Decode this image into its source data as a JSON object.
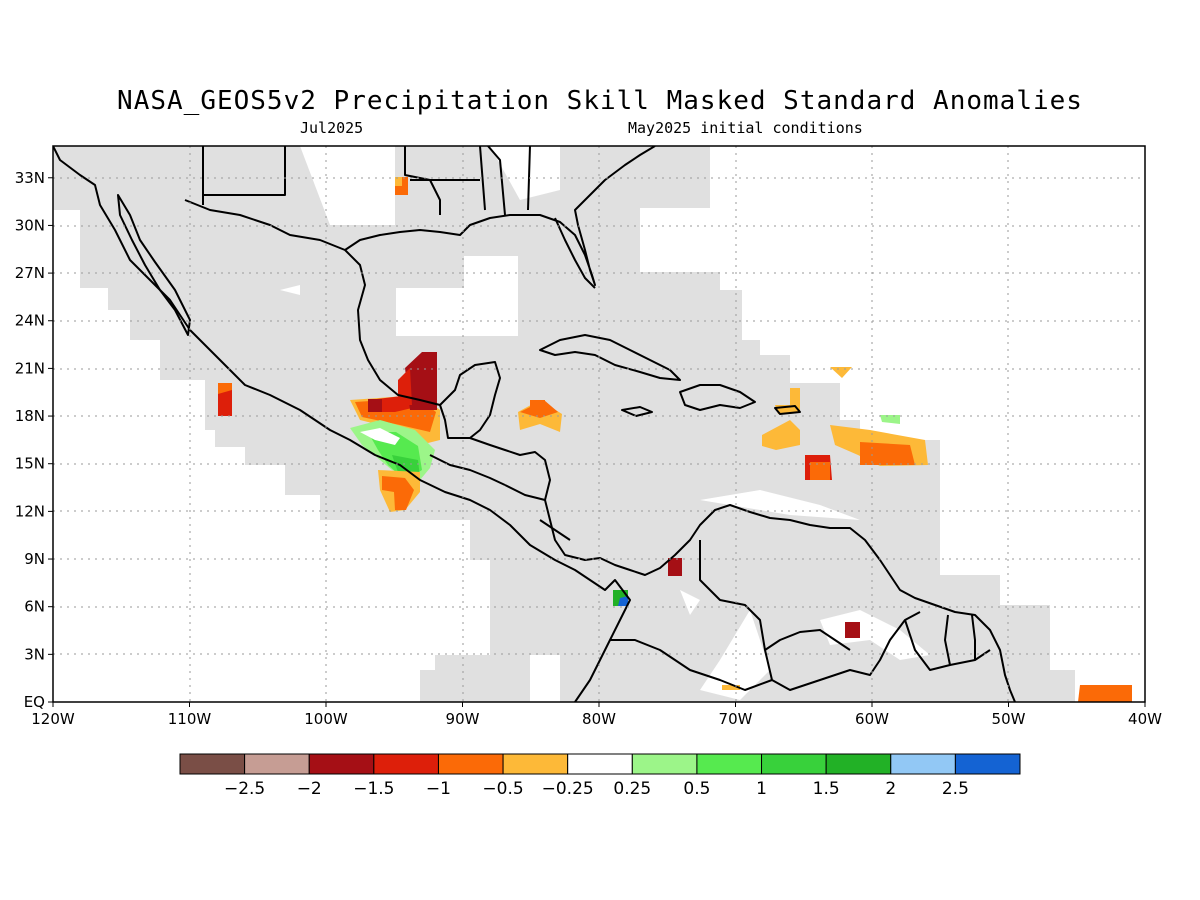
{
  "title": "NASA_GEOS5v2 Precipitation Skill Masked Standard Anomalies",
  "subtitle_left": "Jul2025",
  "subtitle_right": "May2025 initial conditions",
  "map": {
    "lon_range": [
      -120,
      -40
    ],
    "lat_range": [
      0,
      35
    ],
    "lat_ticks": [
      {
        "value": 33,
        "label": "33N"
      },
      {
        "value": 30,
        "label": "30N"
      },
      {
        "value": 27,
        "label": "27N"
      },
      {
        "value": 24,
        "label": "24N"
      },
      {
        "value": 21,
        "label": "21N"
      },
      {
        "value": 18,
        "label": "18N"
      },
      {
        "value": 15,
        "label": "15N"
      },
      {
        "value": 12,
        "label": "12N"
      },
      {
        "value": 9,
        "label": "9N"
      },
      {
        "value": 6,
        "label": "6N"
      },
      {
        "value": 3,
        "label": "3N"
      },
      {
        "value": 0,
        "label": "EQ"
      }
    ],
    "lon_ticks": [
      {
        "value": -120,
        "label": "120W"
      },
      {
        "value": -110,
        "label": "110W"
      },
      {
        "value": -100,
        "label": "100W"
      },
      {
        "value": -90,
        "label": "90W"
      },
      {
        "value": -80,
        "label": "80W"
      },
      {
        "value": -70,
        "label": "70W"
      },
      {
        "value": -60,
        "label": "60W"
      },
      {
        "value": -50,
        "label": "50W"
      },
      {
        "value": -40,
        "label": "40W"
      }
    ],
    "mask_color": "#e0e0e0",
    "gridlines": "dotted"
  },
  "colorbar": {
    "colors": [
      "#7a4e46",
      "#c69d94",
      "#a50f15",
      "#dd1f0a",
      "#fb6a07",
      "#fdb938",
      "#ffffff",
      "#9cf589",
      "#56ea4f",
      "#38d13b",
      "#22b126",
      "#92c8f5",
      "#1463d3"
    ],
    "labels": [
      "-2.5",
      "-2",
      "-1.5",
      "-1",
      "-0.5",
      "-0.25",
      "0.25",
      "0.5",
      "1",
      "1.5",
      "2",
      "2.5"
    ]
  }
}
